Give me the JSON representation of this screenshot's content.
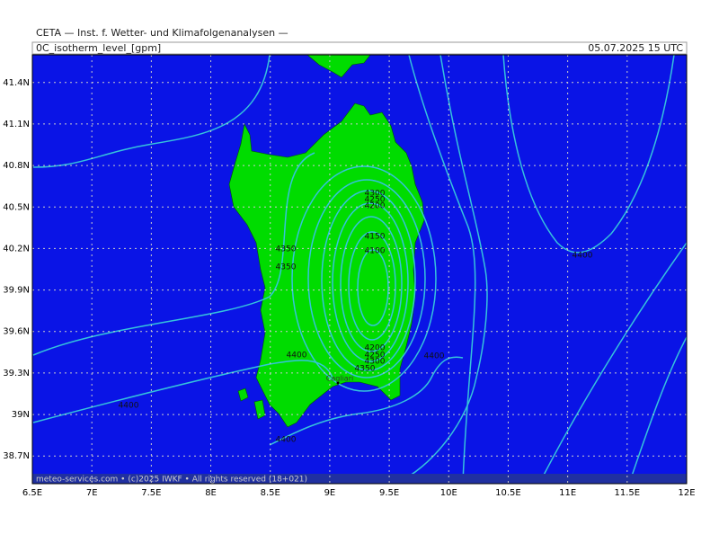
{
  "header": {
    "title": "CETA — Inst. f. Wetter- und Klimafolgenanalysen —",
    "field": "0C_isotherm_level_[gpm]",
    "valid_time": "05.07.2025 15 UTC"
  },
  "map": {
    "xlim": [
      6.5,
      12
    ],
    "ylim": [
      38.5,
      41.6
    ],
    "lon_ticks": [
      {
        "value": 6.5,
        "label": "6.5E"
      },
      {
        "value": 7,
        "label": "7E"
      },
      {
        "value": 7.5,
        "label": "7.5E"
      },
      {
        "value": 8,
        "label": "8E"
      },
      {
        "value": 8.5,
        "label": "8.5E"
      },
      {
        "value": 9,
        "label": "9E"
      },
      {
        "value": 9.5,
        "label": "9.5E"
      },
      {
        "value": 10,
        "label": "10E"
      },
      {
        "value": 10.5,
        "label": "10.5E"
      },
      {
        "value": 11,
        "label": "11E"
      },
      {
        "value": 11.5,
        "label": "11.5E"
      },
      {
        "value": 12,
        "label": "12E"
      }
    ],
    "lat_ticks": [
      {
        "value": 41.4,
        "label": "41.4N"
      },
      {
        "value": 41.1,
        "label": "41.1N"
      },
      {
        "value": 40.8,
        "label": "40.8N"
      },
      {
        "value": 40.5,
        "label": "40.5N"
      },
      {
        "value": 40.2,
        "label": "40.2N"
      },
      {
        "value": 39.9,
        "label": "39.9N"
      },
      {
        "value": 39.6,
        "label": "39.6N"
      },
      {
        "value": 39.3,
        "label": "39.3N"
      },
      {
        "value": 39,
        "label": "39N"
      },
      {
        "value": 38.7,
        "label": "38.7N"
      }
    ],
    "contour_labels": [
      4300,
      4250,
      4200,
      4150,
      4100,
      4350,
      4350,
      4400,
      4200,
      4250,
      4300,
      4350,
      4400,
      4400,
      4400,
      4400
    ],
    "place_labels": [
      "Cagliari"
    ],
    "footer": "meteo-services.com • (c)2025 IWKF • All rights reserved (18+021)"
  }
}
